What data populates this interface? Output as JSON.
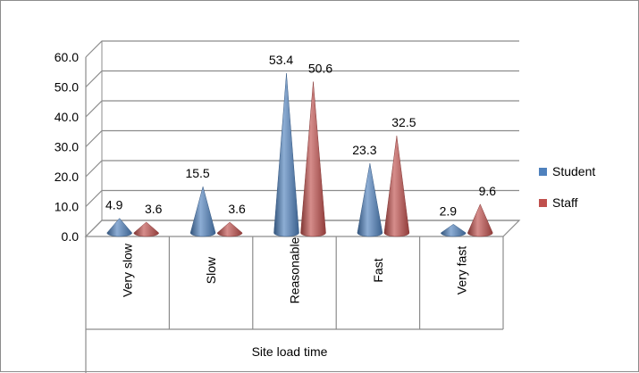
{
  "chart_data": {
    "type": "bar",
    "bar_shape": "cone",
    "categories": [
      "Very slow",
      "Slow",
      "Reasonable",
      "Fast",
      "Very fast"
    ],
    "series": [
      {
        "name": "Student",
        "values": [
          4.9,
          15.5,
          53.4,
          23.3,
          2.9
        ],
        "color": "#4f81bd"
      },
      {
        "name": "Staff",
        "values": [
          3.6,
          3.6,
          50.6,
          32.5,
          9.6
        ],
        "color": "#c0504d"
      }
    ],
    "y_ticks": [
      "0.0",
      "10.0",
      "20.0",
      "30.0",
      "40.0",
      "50.0",
      "60.0"
    ],
    "ylim": [
      0,
      60
    ],
    "xlabel": "Site load time",
    "ylabel": "",
    "title": "",
    "grid": true,
    "legend_position": "right",
    "colors": {
      "grid": "#8c8c8c",
      "frame": "#8c8c8c"
    }
  }
}
